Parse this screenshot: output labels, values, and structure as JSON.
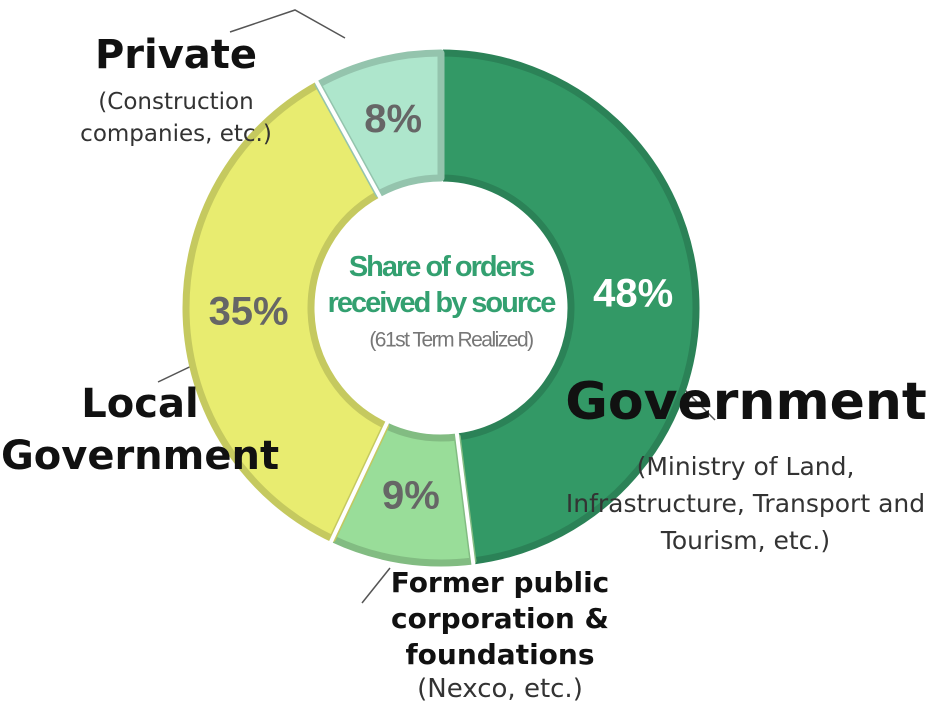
{
  "chart_data": {
    "type": "pie",
    "donut": true,
    "title": "Share of orders received by source",
    "subtitle": "(61st Term Realized)",
    "categories": [
      "Government",
      "Former public corporation & foundations",
      "Local Government",
      "Private"
    ],
    "category_notes": [
      "(Ministry of Land, Infrastructure, Transport and Tourism, etc.)",
      "(Nexco, etc.)",
      null,
      "(Construction companies, etc.)"
    ],
    "values": [
      48,
      9,
      35,
      8
    ],
    "value_labels": [
      "48%",
      "9%",
      "35%",
      "8%"
    ],
    "colors": [
      "#339966",
      "#99dd99",
      "#e8ec70",
      "#aee6cc"
    ]
  }
}
